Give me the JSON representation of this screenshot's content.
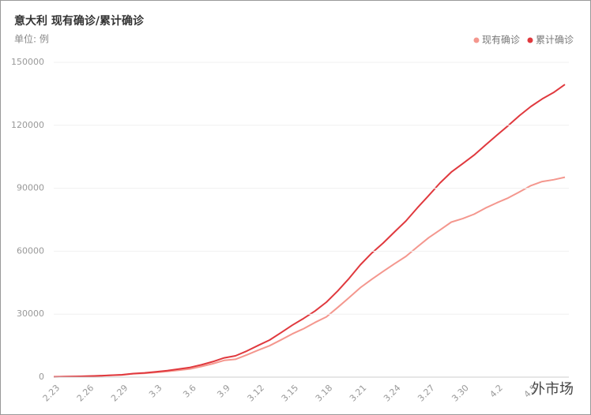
{
  "chart_data": {
    "type": "line",
    "title": "意大利 现有确诊/累计确诊",
    "unit_label": "单位: 例",
    "categories": [
      "2.23",
      null,
      null,
      "2.26",
      null,
      null,
      "2.29",
      null,
      null,
      "3.3",
      null,
      null,
      "3.6",
      null,
      null,
      "3.9",
      null,
      null,
      "3.12",
      null,
      null,
      "3.15",
      null,
      null,
      "3.18",
      null,
      null,
      "3.21",
      null,
      null,
      "3.24",
      null,
      null,
      "3.27",
      null,
      null,
      "3.30",
      null,
      null,
      "4.2",
      null,
      null,
      "4.5",
      null,
      null,
      null
    ],
    "series": [
      {
        "name": "现有确诊",
        "color": "#f4978e",
        "values": [
          150,
          221,
          311,
          438,
          593,
          821,
          1049,
          1577,
          1835,
          2263,
          2706,
          3296,
          3916,
          5061,
          6387,
          7985,
          8514,
          10590,
          12839,
          14955,
          17750,
          20603,
          23073,
          26062,
          28710,
          33190,
          37860,
          42681,
          46638,
          50418,
          54030,
          57521,
          62013,
          66414,
          70065,
          73880,
          75528,
          77635,
          80572,
          83049,
          85388,
          88274,
          91246,
          93187,
          94067,
          95262
        ]
      },
      {
        "name": "累计确诊",
        "color": "#e0393e",
        "values": [
          155,
          229,
          322,
          453,
          655,
          888,
          1128,
          1694,
          2036,
          2502,
          3089,
          3858,
          4636,
          5883,
          7375,
          9172,
          10149,
          12462,
          15113,
          17660,
          21157,
          24747,
          27980,
          31506,
          35713,
          41035,
          47021,
          53578,
          59138,
          63927,
          69176,
          74386,
          80589,
          86498,
          92472,
          97689,
          101739,
          105792,
          110574,
          115242,
          119827,
          124632,
          128948,
          132547,
          135586,
          139422
        ]
      }
    ],
    "ylim": [
      0,
      150000
    ],
    "yticks": [
      0,
      30000,
      60000,
      90000,
      120000,
      150000
    ],
    "grid": true,
    "legend": "top-right",
    "watermark": "外市场"
  }
}
